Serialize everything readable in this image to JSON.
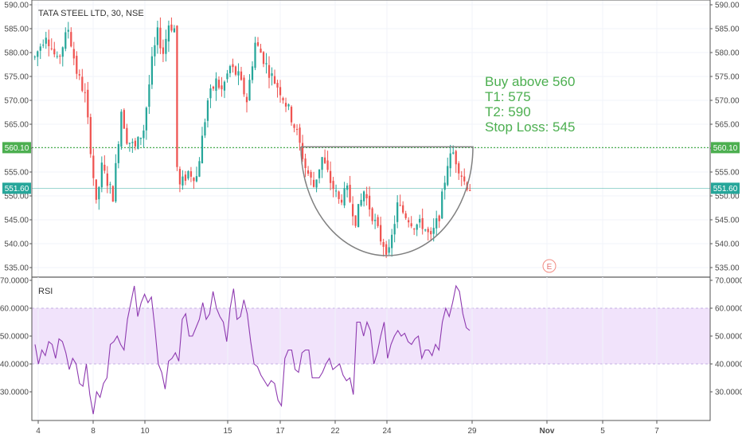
{
  "header": {
    "title": "TATA STEEL LTD, 30, NSE"
  },
  "annotation": {
    "lines": [
      "Buy above 560",
      "T1: 575",
      "T2: 590",
      "Stop Loss: 545"
    ]
  },
  "price_tags": {
    "level": "560.10",
    "last": "551.60"
  },
  "rsi": {
    "label": "RSI"
  },
  "earnings_marker": {
    "label": "E"
  },
  "colors": {
    "up": "#26a69a",
    "down": "#ef5350",
    "level_line": "#4caf50",
    "last_line": "#26a69a",
    "rsi_line": "#8e3ab0",
    "rsi_band": "#f1e3fb",
    "cup_arc": "#808080",
    "annotation": "#4caf50"
  },
  "chart_data": [
    {
      "type": "candlestick",
      "title": "TATA STEEL LTD, 30, NSE",
      "ylim": [
        532.5,
        590
      ],
      "yticks": [
        "590.00",
        "585.00",
        "580.00",
        "575.00",
        "570.00",
        "565.00",
        "560.00",
        "555.00",
        "550.00",
        "545.00",
        "540.00",
        "535.00"
      ],
      "x_tick_labels": [
        "4",
        "8",
        "10",
        "15",
        "17",
        "22",
        "24",
        "29",
        "Nov",
        "5",
        "7"
      ],
      "horizontal_levels": [
        {
          "value": 560.1,
          "style": "dotted"
        },
        {
          "value": 551.6,
          "style": "solid"
        }
      ],
      "pattern": "cup",
      "series_summary": {
        "start": 579,
        "high": 588,
        "low": 536,
        "end": 551.6
      },
      "anchor_points": [
        [
          0,
          579
        ],
        [
          4,
          584
        ],
        [
          8,
          578
        ],
        [
          12,
          585
        ],
        [
          15,
          576
        ],
        [
          18,
          571
        ],
        [
          20,
          560
        ],
        [
          22,
          548
        ],
        [
          24,
          556
        ],
        [
          26,
          553
        ],
        [
          28,
          550
        ],
        [
          31,
          568
        ],
        [
          33,
          562
        ],
        [
          36,
          560
        ],
        [
          39,
          564
        ],
        [
          42,
          578
        ],
        [
          44,
          584
        ],
        [
          46,
          580
        ],
        [
          48,
          586
        ],
        [
          50,
          585
        ],
        [
          51,
          556
        ],
        [
          52,
          552
        ],
        [
          55,
          555
        ],
        [
          58,
          554
        ],
        [
          62,
          570
        ],
        [
          65,
          574
        ],
        [
          67,
          572
        ],
        [
          70,
          577
        ],
        [
          73,
          575
        ],
        [
          76,
          570
        ],
        [
          79,
          582
        ],
        [
          81,
          580
        ],
        [
          84,
          576
        ],
        [
          88,
          572
        ],
        [
          91,
          568
        ],
        [
          94,
          563
        ],
        [
          97,
          556
        ],
        [
          100,
          552
        ],
        [
          103,
          558
        ],
        [
          106,
          553
        ],
        [
          109,
          549
        ],
        [
          112,
          551
        ],
        [
          115,
          545
        ],
        [
          118,
          551
        ],
        [
          121,
          546
        ],
        [
          124,
          541
        ],
        [
          127,
          538
        ],
        [
          130,
          548
        ],
        [
          133,
          546
        ],
        [
          136,
          544
        ],
        [
          139,
          544
        ],
        [
          142,
          541
        ],
        [
          145,
          546
        ],
        [
          148,
          557
        ],
        [
          150,
          559
        ],
        [
          152,
          556
        ],
        [
          154,
          553
        ],
        [
          156,
          551.6
        ]
      ]
    },
    {
      "type": "line",
      "title": "RSI",
      "ylim": [
        22,
        70
      ],
      "yticks": [
        "70.0000",
        "60.0000",
        "50.0000",
        "40.0000",
        "30.0000"
      ],
      "band": [
        40,
        60
      ],
      "values": [
        47,
        40,
        45,
        43,
        48,
        47,
        42,
        49,
        48,
        44,
        38,
        42,
        40,
        33,
        32,
        40,
        29,
        22,
        30,
        28,
        33,
        35,
        47,
        48,
        50,
        47,
        45,
        56,
        62,
        68,
        57,
        62,
        65,
        62,
        64,
        53,
        40,
        37,
        31,
        41,
        42,
        44,
        41,
        56,
        58,
        50,
        50,
        53,
        56,
        62,
        56,
        58,
        66,
        60,
        57,
        55,
        48,
        60,
        67,
        56,
        57,
        63,
        58,
        48,
        40,
        39,
        36,
        34,
        32,
        34,
        33,
        27,
        25,
        42,
        45,
        45,
        38,
        37,
        44,
        45,
        45,
        35,
        35,
        35,
        37,
        40,
        42,
        38,
        39,
        40,
        36,
        34,
        35,
        29,
        55,
        55,
        50,
        55,
        52,
        40,
        44,
        50,
        55,
        42,
        47,
        50,
        52,
        50,
        51,
        48,
        47,
        49,
        50,
        42,
        45,
        45,
        43,
        47,
        45,
        55,
        60,
        57,
        62,
        68,
        66,
        58,
        53,
        52
      ]
    }
  ]
}
